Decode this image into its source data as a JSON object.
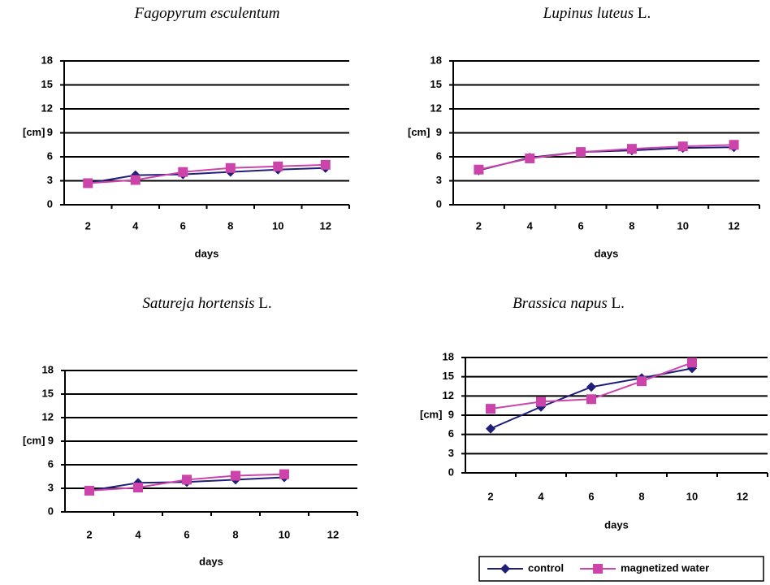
{
  "chart_data": [
    {
      "type": "line",
      "title_italic": "Fagopyrum esculentum",
      "y_label": "[cm]",
      "x_label": "days",
      "categories": [
        "2",
        "4",
        "6",
        "8",
        "10",
        "12"
      ],
      "ylim": [
        0,
        18
      ],
      "yticks": [
        0,
        3,
        6,
        9,
        12,
        15,
        18
      ],
      "grid": true,
      "series": [
        {
          "color": "#1f1f7a",
          "marker": "diamond",
          "values": [
            2.7,
            3.7,
            3.8,
            4.1,
            4.4,
            4.6
          ]
        },
        {
          "color": "#cc44aa",
          "marker": "square",
          "values": [
            2.7,
            3.1,
            4.1,
            4.6,
            4.8,
            5.0
          ]
        }
      ]
    },
    {
      "type": "line",
      "title_italic": "Lupinus luteus",
      "title_suffix": "L.",
      "y_label": "[cm]",
      "x_label": "days",
      "categories": [
        "2",
        "4",
        "6",
        "8",
        "10",
        "12"
      ],
      "ylim": [
        0,
        18
      ],
      "yticks": [
        0,
        3,
        6,
        9,
        12,
        15,
        18
      ],
      "grid": true,
      "series": [
        {
          "color": "#1f1f7a",
          "marker": "diamond",
          "values": [
            4.3,
            5.9,
            6.6,
            6.8,
            7.1,
            7.2
          ]
        },
        {
          "color": "#cc44aa",
          "marker": "square",
          "values": [
            4.4,
            5.8,
            6.6,
            7.0,
            7.3,
            7.5
          ]
        }
      ]
    },
    {
      "type": "line",
      "title_italic": "Satureja hortensis",
      "title_suffix": "L.",
      "y_label": "[cm]",
      "x_label": "days",
      "categories": [
        "2",
        "4",
        "6",
        "8",
        "10",
        "12"
      ],
      "ylim": [
        0,
        18
      ],
      "yticks": [
        0,
        3,
        6,
        9,
        12,
        15,
        18
      ],
      "grid": true,
      "series": [
        {
          "color": "#1f1f7a",
          "marker": "diamond",
          "values": [
            2.7,
            3.7,
            3.8,
            4.1,
            4.4,
            null
          ]
        },
        {
          "color": "#cc44aa",
          "marker": "square",
          "values": [
            2.7,
            3.1,
            4.1,
            4.6,
            4.8,
            null
          ]
        }
      ]
    },
    {
      "type": "line",
      "title_italic": "Brassica napus",
      "title_suffix": "L.",
      "y_label": "[cm]",
      "x_label": "days",
      "categories": [
        "2",
        "4",
        "6",
        "8",
        "10",
        "12"
      ],
      "ylim": [
        0,
        18
      ],
      "yticks": [
        0,
        3,
        6,
        9,
        12,
        15,
        18
      ],
      "grid": true,
      "series": [
        {
          "name": "control",
          "color": "#1f1f7a",
          "marker": "diamond",
          "values": [
            6.9,
            10.3,
            13.4,
            14.8,
            16.3,
            null
          ]
        },
        {
          "name": "magnetized water",
          "color": "#cc44aa",
          "marker": "square",
          "values": [
            10.0,
            11.1,
            11.5,
            14.3,
            17.2,
            null
          ]
        }
      ]
    }
  ]
}
